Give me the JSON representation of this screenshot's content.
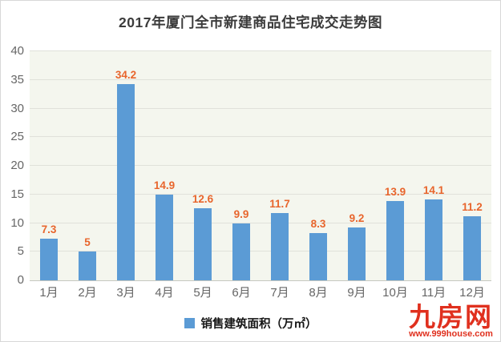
{
  "page": {
    "watermark": {
      "name": "九房网",
      "url": "www.999house.com",
      "color": "#e0301e"
    }
  },
  "chart_data": {
    "type": "bar",
    "title": "2017年厦门全市新建商品住宅成交走势图",
    "categories": [
      "1月",
      "2月",
      "3月",
      "4月",
      "5月",
      "6月",
      "7月",
      "8月",
      "9月",
      "10月",
      "11月",
      "12月"
    ],
    "values": [
      7.3,
      5,
      34.2,
      14.9,
      12.6,
      9.9,
      11.7,
      8.3,
      9.2,
      13.9,
      14.1,
      11.2
    ],
    "value_labels": [
      "7.3",
      "5",
      "34.2",
      "14.9",
      "12.6",
      "9.9",
      "11.7",
      "8.3",
      "9.2",
      "13.9",
      "14.1",
      "11.2"
    ],
    "legend": "销售建筑面积（万㎡）",
    "legend_position": "bottom",
    "xlabel": "",
    "ylabel": "",
    "ylim": [
      0,
      40
    ],
    "yticks": [
      0,
      5,
      10,
      15,
      20,
      25,
      30,
      35,
      40
    ],
    "grid": true,
    "colors": {
      "bar": "#5b9bd5",
      "value_label": "#e8652c",
      "axis_text": "#666666",
      "title_text": "#3b3b3b",
      "plot_background": "#f4f6ee",
      "gridline": "#e0e1da"
    }
  }
}
